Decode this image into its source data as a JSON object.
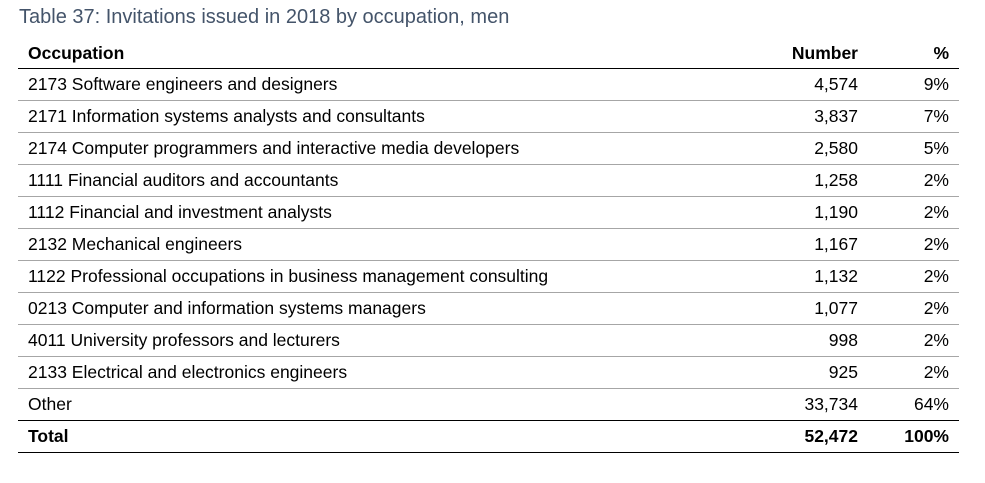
{
  "caption": "Table 37: Invitations issued in 2018 by occupation, men",
  "header": {
    "occupation": "Occupation",
    "number": "Number",
    "percent": "%"
  },
  "rows": [
    {
      "occupation": "2173 Software engineers and designers",
      "number": "4,574",
      "percent": "9%"
    },
    {
      "occupation": "2171 Information systems analysts and consultants",
      "number": "3,837",
      "percent": "7%"
    },
    {
      "occupation": "2174 Computer programmers and interactive media developers",
      "number": "2,580",
      "percent": "5%"
    },
    {
      "occupation": "1111 Financial auditors and accountants",
      "number": "1,258",
      "percent": "2%"
    },
    {
      "occupation": "1112 Financial and investment analysts",
      "number": "1,190",
      "percent": "2%"
    },
    {
      "occupation": "2132 Mechanical engineers",
      "number": "1,167",
      "percent": "2%"
    },
    {
      "occupation": "1122 Professional occupations in business management consulting",
      "number": "1,132",
      "percent": "2%"
    },
    {
      "occupation": "0213 Computer and information systems managers",
      "number": "1,077",
      "percent": "2%"
    },
    {
      "occupation": "4011 University professors and lecturers",
      "number": "998",
      "percent": "2%"
    },
    {
      "occupation": "2133 Electrical and electronics engineers",
      "number": "925",
      "percent": "2%"
    }
  ],
  "other": {
    "occupation": "Other",
    "number": "33,734",
    "percent": "64%"
  },
  "total": {
    "occupation": "Total",
    "number": "52,472",
    "percent": "100%"
  },
  "colors": {
    "caption": "#44546a",
    "rule": "#a6a6a6",
    "text": "#000000"
  }
}
